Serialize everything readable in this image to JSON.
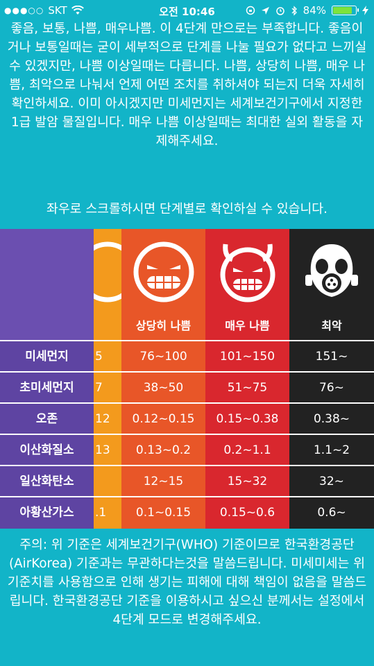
{
  "status": {
    "carrier": "SKT",
    "time": "오전 10:46",
    "battery": "84%",
    "battery_level": 0.84
  },
  "intro_text": "좋음, 보통, 나쁨, 매우나쁨. 이 4단계 만으로는 부족합니다. 좋음이거나 보통일때는 굳이 세부적으로 단계를 나눌 필요가 없다고 느끼실 수 있겠지만, 나쁨 이상일때는 다릅니다. 나쁨, 상당히 나쁨, 매우 나쁨, 최악으로 나눠서 언제 어떤 조치를 취하셔야 되는지 더욱 자세히 확인하세요. 이미 아시겠지만 미세먼지는 세계보건기구에서 지정한 1급 발암 물질입니다. 매우 나쁨 이상일때는 최대한 실외 활동을 자제해주세요.",
  "scroll_hint": "좌우로 스크롤하시면 단계별로 확인하실 수 있습니다.",
  "table": {
    "rows": [
      "미세먼지",
      "초미세먼지",
      "오존",
      "이산화질소",
      "일산화탄소",
      "아황산가스"
    ],
    "partial_column": {
      "color": "#f39a1d",
      "values": [
        "5",
        "7",
        "12",
        "13",
        "",
        ".1"
      ]
    },
    "levels": [
      {
        "label": "상당히 나쁨",
        "color": "#e85628",
        "icon": "grinning-angry-face-icon",
        "values": [
          "76~100",
          "38~50",
          "0.12~0.15",
          "0.13~0.2",
          "12~15",
          "0.1~0.15"
        ]
      },
      {
        "label": "매우 나쁨",
        "color": "#d9272e",
        "icon": "devil-face-icon",
        "values": [
          "101~150",
          "51~75",
          "0.15~0.38",
          "0.2~1.1",
          "15~32",
          "0.15~0.6"
        ]
      },
      {
        "label": "최악",
        "color": "#222222",
        "icon": "gas-mask-icon",
        "values": [
          "151~",
          "76~",
          "0.38~",
          "1.1~2",
          "32~",
          "0.6~"
        ]
      }
    ]
  },
  "notice_text": "주의: 위 기준은 세계보건기구(WHO) 기준이므로 한국환경공단 (AirKorea) 기준과는 무관하다는것을 말씀드립니다. 미세미세는 위 기준치를 사용함으로 인해 생기는 피해에 대해 책임이 없음을 말씀드립니다. 한국환경공단 기준을 이용하시고 싶으신 분께서는 설정에서 4단계 모드로 변경해주세요."
}
